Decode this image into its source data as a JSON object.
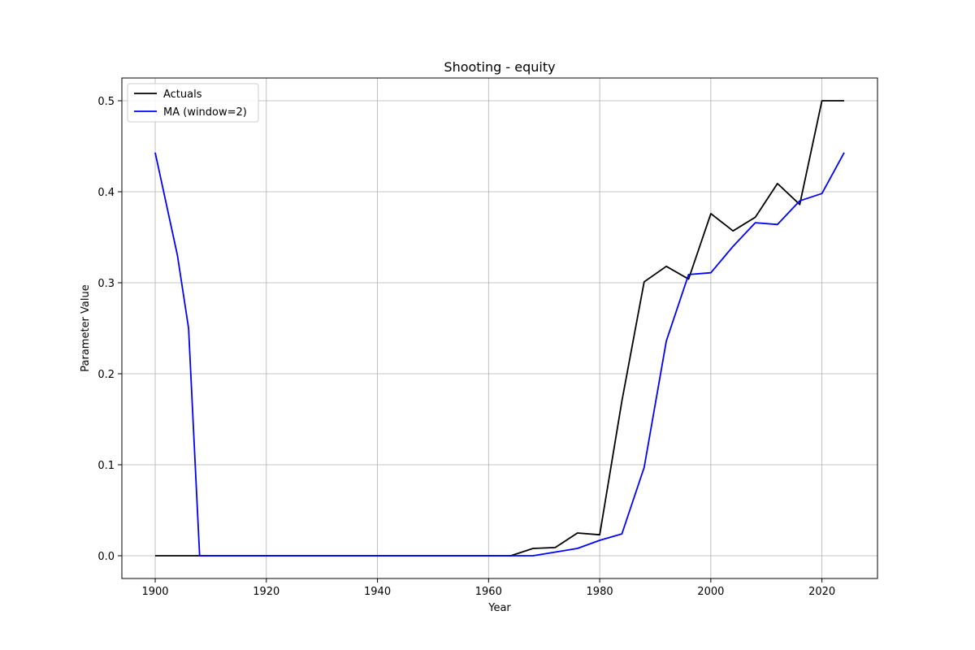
{
  "chart_data": {
    "type": "line",
    "title": "Shooting - equity",
    "xlabel": "Year",
    "ylabel": "Parameter Value",
    "xlim": [
      1894,
      2030
    ],
    "ylim": [
      -0.025,
      0.525
    ],
    "xticks": [
      1900,
      1920,
      1940,
      1960,
      1980,
      2000,
      2020
    ],
    "yticks": [
      0.0,
      0.1,
      0.2,
      0.3,
      0.4,
      0.5
    ],
    "grid": true,
    "legend_position": "upper-left",
    "series": [
      {
        "name": "Actuals",
        "color": "#000000",
        "points": [
          [
            1900,
            0.0
          ],
          [
            1904,
            0.0
          ],
          [
            1906,
            0.0
          ],
          [
            1908,
            0.0
          ],
          [
            1912,
            0.0
          ],
          [
            1920,
            0.0
          ],
          [
            1924,
            0.0
          ],
          [
            1928,
            0.0
          ],
          [
            1932,
            0.0
          ],
          [
            1936,
            0.0
          ],
          [
            1948,
            0.0
          ],
          [
            1952,
            0.0
          ],
          [
            1956,
            0.0
          ],
          [
            1960,
            0.0
          ],
          [
            1964,
            0.0
          ],
          [
            1968,
            0.008
          ],
          [
            1972,
            0.009
          ],
          [
            1976,
            0.025
          ],
          [
            1980,
            0.023
          ],
          [
            1984,
            0.17
          ],
          [
            1988,
            0.301
          ],
          [
            1992,
            0.318
          ],
          [
            1996,
            0.304
          ],
          [
            2000,
            0.376
          ],
          [
            2004,
            0.357
          ],
          [
            2008,
            0.372
          ],
          [
            2012,
            0.409
          ],
          [
            2016,
            0.386
          ],
          [
            2020,
            0.5
          ],
          [
            2024,
            0.5
          ]
        ]
      },
      {
        "name": "MA (window=2)",
        "color": "#0000ff",
        "points": [
          [
            1900,
            0.443
          ],
          [
            1904,
            0.33
          ],
          [
            1906,
            0.25
          ],
          [
            1908,
            0.0
          ],
          [
            1912,
            0.0
          ],
          [
            1920,
            0.0
          ],
          [
            1924,
            0.0
          ],
          [
            1928,
            0.0
          ],
          [
            1932,
            0.0
          ],
          [
            1936,
            0.0
          ],
          [
            1948,
            0.0
          ],
          [
            1952,
            0.0
          ],
          [
            1956,
            0.0
          ],
          [
            1960,
            0.0
          ],
          [
            1964,
            0.0
          ],
          [
            1968,
            0.0
          ],
          [
            1972,
            0.004
          ],
          [
            1976,
            0.008
          ],
          [
            1980,
            0.017
          ],
          [
            1984,
            0.024
          ],
          [
            1988,
            0.097
          ],
          [
            1992,
            0.236
          ],
          [
            1996,
            0.309
          ],
          [
            2000,
            0.311
          ],
          [
            2004,
            0.34
          ],
          [
            2008,
            0.366
          ],
          [
            2012,
            0.364
          ],
          [
            2016,
            0.39
          ],
          [
            2020,
            0.398
          ],
          [
            2024,
            0.443
          ]
        ]
      }
    ]
  }
}
